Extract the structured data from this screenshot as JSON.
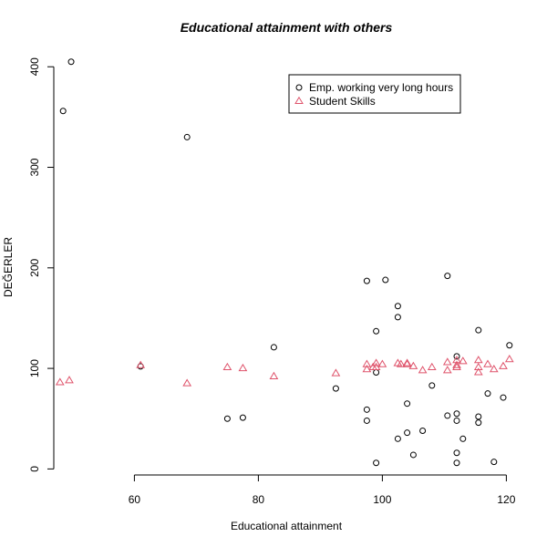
{
  "chart_data": {
    "type": "scatter",
    "title": "Educational attainment with others",
    "xlabel": "Educational attainment",
    "ylabel": "DEĞERLER",
    "xlim": [
      47,
      122
    ],
    "ylim": [
      -6,
      412
    ],
    "xticks": [
      60,
      80,
      100,
      120
    ],
    "yticks": [
      0,
      100,
      200,
      300,
      400
    ],
    "legend": {
      "placement": "top-right",
      "entries": [
        {
          "label": "Emp. working very long hours",
          "marker": "circle",
          "color": "#000000"
        },
        {
          "label": "Student Skills",
          "marker": "triangle",
          "color": "#DF536B"
        }
      ]
    },
    "series": [
      {
        "name": "Emp. working very long hours",
        "marker": "circle",
        "color": "#000000",
        "points": [
          [
            48.5,
            356
          ],
          [
            49.8,
            405
          ],
          [
            61.0,
            102
          ],
          [
            68.5,
            330
          ],
          [
            75.0,
            50
          ],
          [
            77.5,
            51
          ],
          [
            82.5,
            121
          ],
          [
            92.5,
            80
          ],
          [
            97.5,
            187
          ],
          [
            97.5,
            59
          ],
          [
            97.5,
            48
          ],
          [
            99.0,
            137
          ],
          [
            99.0,
            96
          ],
          [
            99.0,
            6
          ],
          [
            100.5,
            188
          ],
          [
            102.5,
            162
          ],
          [
            102.5,
            151
          ],
          [
            102.5,
            30
          ],
          [
            104.0,
            65
          ],
          [
            104.0,
            36
          ],
          [
            105.0,
            14
          ],
          [
            106.5,
            38
          ],
          [
            108.0,
            83
          ],
          [
            110.5,
            192
          ],
          [
            110.5,
            53
          ],
          [
            112.0,
            112
          ],
          [
            112.0,
            55
          ],
          [
            112.0,
            48
          ],
          [
            112.0,
            16
          ],
          [
            112.0,
            6
          ],
          [
            113.0,
            30
          ],
          [
            115.5,
            138
          ],
          [
            115.5,
            52
          ],
          [
            115.5,
            46
          ],
          [
            117.0,
            75
          ],
          [
            118.0,
            7
          ],
          [
            119.5,
            71
          ],
          [
            120.5,
            123
          ]
        ]
      },
      {
        "name": "Student Skills",
        "marker": "triangle",
        "color": "#DF536B",
        "points": [
          [
            48.0,
            86
          ],
          [
            49.5,
            88
          ],
          [
            61.0,
            103
          ],
          [
            68.5,
            85
          ],
          [
            75.0,
            101
          ],
          [
            77.5,
            100
          ],
          [
            82.5,
            92
          ],
          [
            92.5,
            95
          ],
          [
            97.5,
            104
          ],
          [
            97.5,
            99
          ],
          [
            98.5,
            101
          ],
          [
            99.0,
            105
          ],
          [
            99.0,
            101
          ],
          [
            100.0,
            104
          ],
          [
            102.5,
            105
          ],
          [
            103.0,
            104
          ],
          [
            104.0,
            104
          ],
          [
            104.0,
            105
          ],
          [
            105.0,
            102
          ],
          [
            106.5,
            98
          ],
          [
            108.0,
            101
          ],
          [
            110.5,
            98
          ],
          [
            110.5,
            106
          ],
          [
            112.0,
            103
          ],
          [
            112.0,
            101
          ],
          [
            112.0,
            108
          ],
          [
            113.0,
            107
          ],
          [
            115.5,
            108
          ],
          [
            115.5,
            101
          ],
          [
            115.5,
            96
          ],
          [
            117.0,
            104
          ],
          [
            118.0,
            99
          ],
          [
            119.5,
            102
          ],
          [
            120.5,
            109
          ]
        ]
      }
    ]
  }
}
